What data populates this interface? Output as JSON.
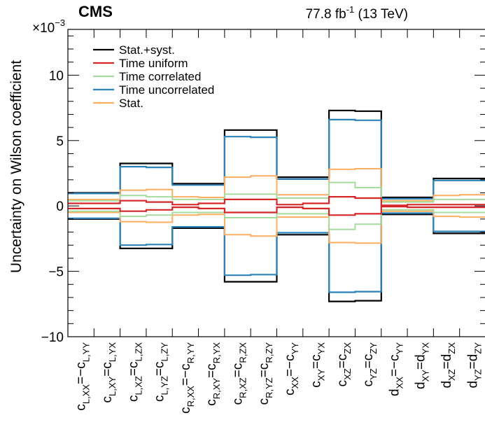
{
  "chart_data": {
    "type": "step",
    "experiment": "CMS",
    "lumi_label": "77.8 fb",
    "lumi_sup": "-1",
    "lumi_energy": " (13 TeV)",
    "ylabel": "Uncertainty on Wilson coefficient",
    "y_exponent_base": "×10",
    "y_exponent_power": "−3",
    "ylim": [
      -10,
      13.5
    ],
    "y_ticks": [
      {
        "value": 10,
        "label": "10"
      },
      {
        "value": 5,
        "label": "5"
      },
      {
        "value": 0,
        "label": "0"
      },
      {
        "value": -5,
        "label": "−5"
      },
      {
        "value": -10,
        "label": "−10"
      }
    ],
    "y_unit_multiplier": 0.001,
    "categories": [
      {
        "base": "c",
        "sub": "L,XX",
        "eq": "=−",
        "base2": "c",
        "sub2": "L,YY"
      },
      {
        "base": "c",
        "sub": "L,XY",
        "eq": "=",
        "base2": "c",
        "sub2": "L,YX"
      },
      {
        "base": "c",
        "sub": "L,XZ",
        "eq": "=",
        "base2": "c",
        "sub2": "L,ZX"
      },
      {
        "base": "c",
        "sub": "L,YZ",
        "eq": "=",
        "base2": "c",
        "sub2": "L,ZY"
      },
      {
        "base": "c",
        "sub": "R,XX",
        "eq": "=−",
        "base2": "c",
        "sub2": "R,YY"
      },
      {
        "base": "c",
        "sub": "R,XY",
        "eq": "=",
        "base2": "c",
        "sub2": "R,YX"
      },
      {
        "base": "c",
        "sub": "R,XZ",
        "eq": "=",
        "base2": "c",
        "sub2": "R,ZX"
      },
      {
        "base": "c",
        "sub": "R,YZ",
        "eq": "=",
        "base2": "c",
        "sub2": "R,ZY"
      },
      {
        "base": "c",
        "sub": "XX",
        "eq": "=−",
        "base2": "c",
        "sub2": "YY"
      },
      {
        "base": "c",
        "sub": "XY",
        "eq": "=",
        "base2": "c",
        "sub2": "YX"
      },
      {
        "base": "c",
        "sub": "XZ",
        "eq": "=",
        "base2": "c",
        "sub2": "ZX"
      },
      {
        "base": "c",
        "sub": "YZ",
        "eq": "=",
        "base2": "c",
        "sub2": "ZY"
      },
      {
        "base": "d",
        "sub": "XX",
        "eq": "=−",
        "base2": "c",
        "sub2": "YY"
      },
      {
        "base": "d",
        "sub": "XY",
        "eq": "=",
        "base2": "d",
        "sub2": "YX"
      },
      {
        "base": "d",
        "sub": "XZ",
        "eq": "=",
        "base2": "d",
        "sub2": "ZX"
      },
      {
        "base": "d",
        "sub": "YZ",
        "eq": "=",
        "base2": "d",
        "sub2": "ZY"
      }
    ],
    "series": [
      {
        "name": "Stat.+syst.",
        "color": "#000000",
        "values": [
          1.0,
          1.0,
          3.25,
          3.25,
          1.7,
          1.7,
          5.8,
          5.8,
          2.2,
          2.2,
          7.3,
          7.25,
          0.65,
          0.65,
          2.1,
          2.1
        ]
      },
      {
        "name": "Time uniform",
        "color": "#d62728",
        "values": [
          0.2,
          0.2,
          0.4,
          0.3,
          0.1,
          0.2,
          0.5,
          0.5,
          0.1,
          0.2,
          0.7,
          0.6,
          0.05,
          0.1,
          0.1,
          0.1
        ]
      },
      {
        "name": "Time correlated",
        "color": "#a6dba0",
        "values": [
          0.4,
          0.4,
          0.8,
          0.7,
          0.5,
          0.5,
          0.9,
          0.9,
          0.6,
          0.6,
          1.8,
          1.4,
          0.3,
          0.3,
          0.5,
          0.5
        ]
      },
      {
        "name": "Time uncorrelated",
        "color": "#2b83ba",
        "values": [
          0.95,
          0.95,
          3.0,
          2.95,
          1.6,
          1.6,
          5.3,
          5.25,
          2.05,
          2.05,
          6.6,
          6.55,
          0.55,
          0.55,
          1.95,
          1.95
        ]
      },
      {
        "name": "Stat.",
        "color": "#fdae61",
        "values": [
          0.5,
          0.5,
          1.2,
          1.25,
          0.7,
          0.65,
          2.2,
          2.3,
          0.85,
          0.85,
          2.8,
          2.85,
          0.4,
          0.4,
          0.8,
          0.85
        ]
      }
    ],
    "legend_position": "top-left",
    "grid": false
  }
}
